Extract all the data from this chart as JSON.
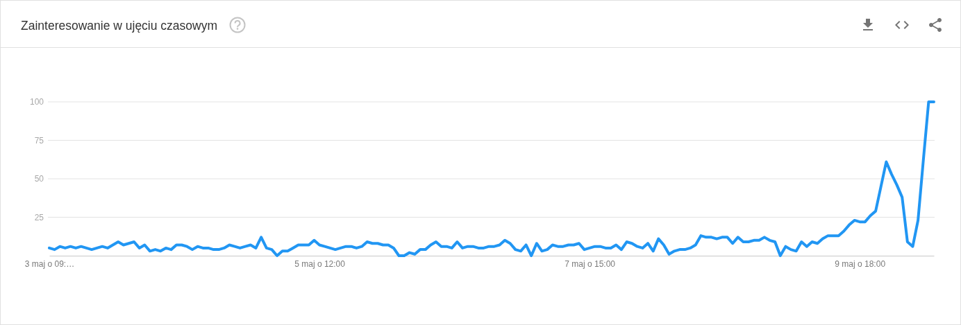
{
  "chart_data": {
    "type": "line",
    "title": "Zainteresowanie w ujęciu czasowym",
    "categories": [
      "3 maj o 09:…",
      null,
      null,
      null,
      null,
      null,
      null,
      null,
      null,
      null,
      null,
      null,
      null,
      null,
      null,
      null,
      null,
      null,
      null,
      null,
      null,
      null,
      null,
      null,
      null,
      null,
      null,
      null,
      null,
      null,
      null,
      null,
      null,
      null,
      null,
      null,
      null,
      null,
      null,
      null,
      null,
      null,
      null,
      null,
      null,
      null,
      null,
      null,
      null,
      null,
      null,
      "5 maj o 12:00",
      null,
      null,
      null,
      null,
      null,
      null,
      null,
      null,
      null,
      null,
      null,
      null,
      null,
      null,
      null,
      null,
      null,
      null,
      null,
      null,
      null,
      null,
      null,
      null,
      null,
      null,
      null,
      null,
      null,
      null,
      null,
      null,
      null,
      null,
      null,
      null,
      null,
      null,
      null,
      null,
      null,
      null,
      null,
      null,
      null,
      null,
      null,
      null,
      null,
      null,
      "7 maj o 15:00",
      null,
      null,
      null,
      null,
      null,
      null,
      null,
      null,
      null,
      null,
      null,
      null,
      null,
      null,
      null,
      null,
      null,
      null,
      null,
      null,
      null,
      null,
      null,
      null,
      null,
      null,
      null,
      null,
      null,
      null,
      null,
      null,
      null,
      null,
      null,
      null,
      null,
      null,
      null,
      null,
      null,
      null,
      null,
      null,
      null,
      null,
      null,
      null,
      null,
      null,
      "9 maj o 18:00",
      null,
      null,
      null,
      null,
      null,
      null,
      null,
      null,
      null,
      null,
      null,
      null,
      null,
      null
    ],
    "values": [
      5,
      4,
      6,
      5,
      6,
      5,
      6,
      5,
      4,
      5,
      6,
      5,
      7,
      9,
      7,
      8,
      9,
      5,
      7,
      3,
      4,
      3,
      5,
      4,
      7,
      7,
      6,
      4,
      6,
      5,
      5,
      4,
      4,
      5,
      7,
      6,
      5,
      6,
      7,
      5,
      12,
      5,
      4,
      0,
      3,
      3,
      5,
      7,
      7,
      7,
      10,
      7,
      6,
      5,
      4,
      5,
      6,
      6,
      5,
      6,
      9,
      8,
      8,
      7,
      7,
      5,
      0,
      0,
      2,
      1,
      4,
      4,
      7,
      9,
      6,
      6,
      5,
      9,
      5,
      6,
      6,
      5,
      5,
      6,
      6,
      7,
      10,
      8,
      4,
      3,
      7,
      0,
      8,
      3,
      4,
      7,
      6,
      6,
      7,
      7,
      8,
      4,
      5,
      6,
      6,
      5,
      5,
      7,
      4,
      9,
      8,
      6,
      5,
      8,
      3,
      11,
      7,
      1,
      3,
      4,
      4,
      5,
      7,
      13,
      12,
      12,
      11,
      12,
      12,
      8,
      12,
      9,
      9,
      10,
      10,
      12,
      10,
      9,
      0,
      6,
      4,
      3,
      9,
      6,
      9,
      8,
      11,
      13,
      13,
      13,
      16,
      20,
      23,
      22,
      22,
      26,
      29,
      45,
      61,
      53,
      46,
      38,
      9,
      6,
      23,
      62,
      100,
      100
    ],
    "color": "#2196f3",
    "ylim": [
      0,
      100
    ],
    "yticks": [
      25,
      50,
      75,
      100
    ],
    "grid": "y"
  }
}
